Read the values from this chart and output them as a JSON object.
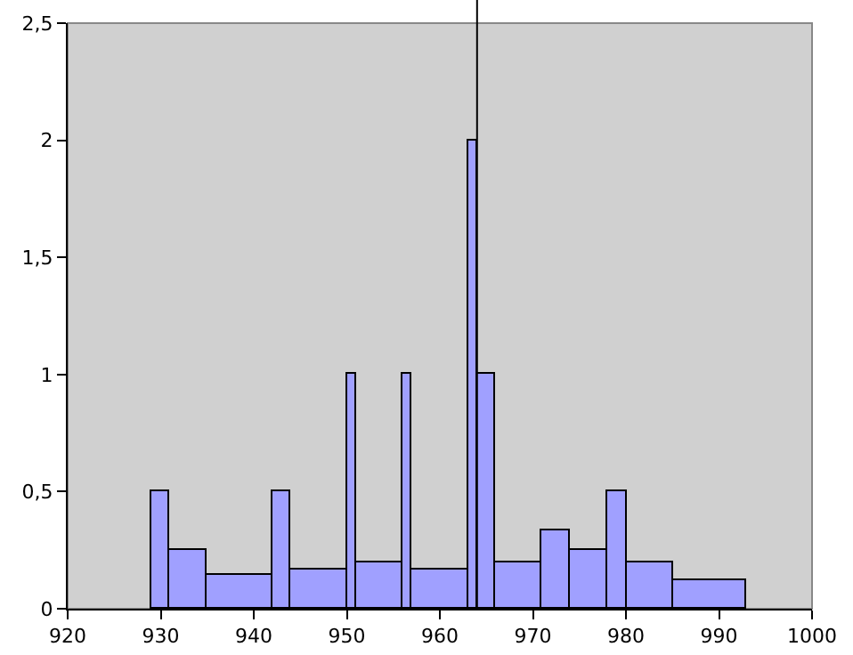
{
  "chart_data": {
    "type": "histogram",
    "color": "#a0a0ff",
    "bins": [
      929,
      931,
      935,
      942,
      944,
      950,
      951,
      956,
      957,
      963,
      964,
      966,
      971,
      974,
      978,
      980,
      985,
      993
    ],
    "values": [
      0.5,
      0.25,
      0.143,
      0.5,
      0.167,
      1,
      0.2,
      1,
      0.167,
      2,
      1,
      0.2,
      0.333,
      0.25,
      0.5,
      0.2,
      0.125
    ],
    "xlim": [
      920,
      1000
    ],
    "xticks": [
      920,
      930,
      940,
      950,
      960,
      970,
      980,
      990,
      1000
    ],
    "ylim": [
      0,
      2.5
    ],
    "yticks": [
      0,
      {
        "value": 0.5,
        "label": "0,5"
      },
      1,
      {
        "value": 1.5,
        "label": "1,5"
      },
      2,
      {
        "value": 2.5,
        "label": "2,5"
      }
    ],
    "ref_lines": [
      {
        "axis": "x",
        "value": 964
      }
    ]
  }
}
